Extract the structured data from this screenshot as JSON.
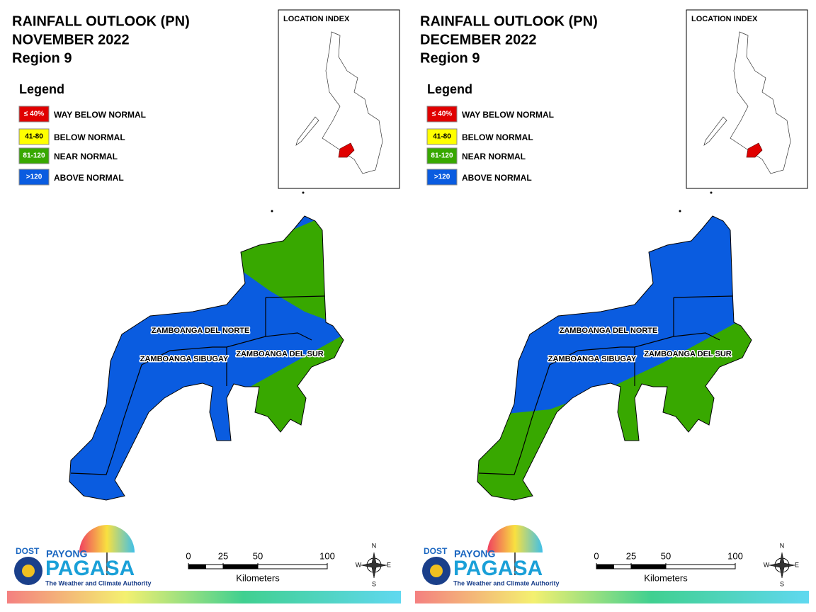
{
  "panels": [
    {
      "title": [
        "RAINFALL OUTLOOK (PN)",
        "NOVEMBER 2022",
        "Region 9"
      ],
      "legend": {
        "title": "Legend",
        "items": [
          {
            "key": "≤ 40%",
            "label": "WAY BELOW NORMAL",
            "color": "#e00000"
          },
          {
            "key": "41-80",
            "label": "BELOW NORMAL",
            "color": "#ffff00"
          },
          {
            "key": "81-120",
            "label": "NEAR NORMAL",
            "color": "#38a800"
          },
          {
            "key": ">120",
            "label": "ABOVE NORMAL",
            "color": "#0a5ce0"
          }
        ]
      },
      "location_index": "LOCATION INDEX",
      "provinces": [
        "ZAMBOANGA DEL NORTE",
        "ZAMBOANGA SIBUGAY",
        "ZAMBOANGA DEL SUR"
      ],
      "scale": {
        "ticks": [
          0,
          25,
          50,
          100
        ],
        "unit": "Kilometers"
      },
      "compass": [
        "N",
        "E",
        "S",
        "W"
      ],
      "logo": {
        "agency": "DOST",
        "brand": "PAYONG",
        "name": "PAGASA",
        "tagline": "The Weather and Climate Authority"
      }
    },
    {
      "title": [
        "RAINFALL OUTLOOK (PN)",
        "DECEMBER 2022",
        "Region 9"
      ],
      "legend": {
        "title": "Legend",
        "items": [
          {
            "key": "≤ 40%",
            "label": "WAY BELOW NORMAL",
            "color": "#e00000"
          },
          {
            "key": "41-80",
            "label": "BELOW NORMAL",
            "color": "#ffff00"
          },
          {
            "key": "81-120",
            "label": "NEAR NORMAL",
            "color": "#38a800"
          },
          {
            "key": ">120",
            "label": "ABOVE NORMAL",
            "color": "#0a5ce0"
          }
        ]
      },
      "location_index": "LOCATION INDEX",
      "provinces": [
        "ZAMBOANGA DEL NORTE",
        "ZAMBOANGA SIBUGAY",
        "ZAMBOANGA DEL SUR"
      ],
      "scale": {
        "ticks": [
          0,
          25,
          50,
          100
        ],
        "unit": "Kilometers"
      },
      "compass": [
        "N",
        "E",
        "S",
        "W"
      ],
      "logo": {
        "agency": "DOST",
        "brand": "PAYONG",
        "name": "PAGASA",
        "tagline": "The Weather and Climate Authority"
      }
    }
  ]
}
